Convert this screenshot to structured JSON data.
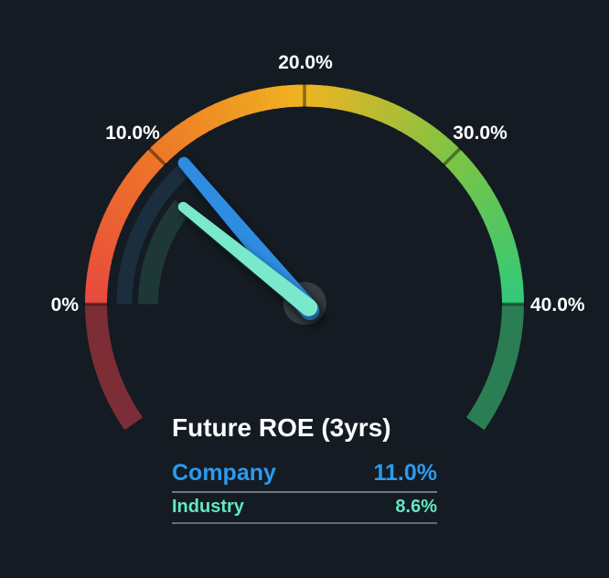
{
  "page": {
    "background_color": "#141b23"
  },
  "chart_data": {
    "type": "gauge",
    "title": "Future ROE (3yrs)",
    "unit": "%",
    "axis_min": 0,
    "axis_max": 40,
    "tick_values": [
      0,
      10,
      20,
      30,
      40
    ],
    "tick_labels": [
      "0%",
      "10.0%",
      "20.0%",
      "30.0%",
      "40.0%"
    ],
    "arc_gradient_stops": [
      {
        "value": 0,
        "color": "#e8493f"
      },
      {
        "value": 10,
        "color": "#ee7628"
      },
      {
        "value": 20,
        "color": "#f0b420"
      },
      {
        "value": 30,
        "color": "#7ec444"
      },
      {
        "value": 40,
        "color": "#30c979"
      }
    ],
    "below_min_color": "#7d2d35",
    "above_max_color": "#2b7e53",
    "tick_mark_color": "rgba(0,0,0,0.42)",
    "tick_label_color": "#ffffff",
    "hub_color": "#373c44",
    "series": [
      {
        "name": "Company",
        "value": 11.0,
        "display": "11.0%",
        "text_color": "#2b9af0",
        "needle_color": "#2f8ce1",
        "trail_color": "#1b2e3e"
      },
      {
        "name": "Industry",
        "value": 8.6,
        "display": "8.6%",
        "text_color": "#63e6c3",
        "needle_color": "#7ae8cc",
        "trail_color": "#1e3837"
      }
    ],
    "legend_position": "bottom-center"
  }
}
